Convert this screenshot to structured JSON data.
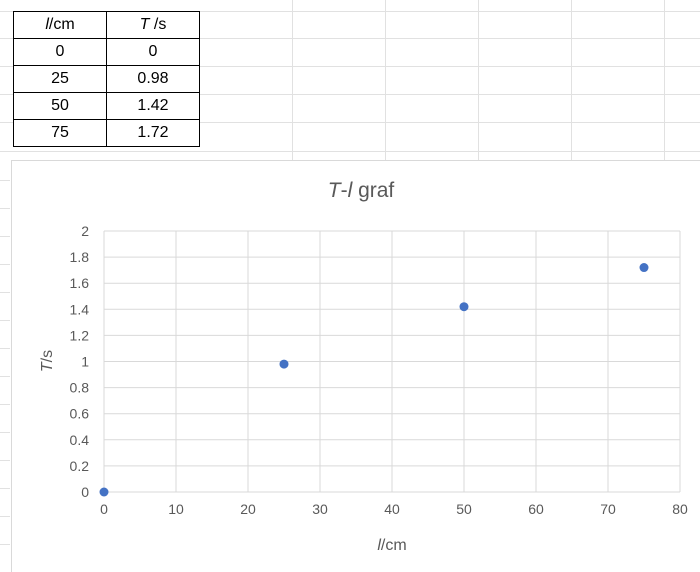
{
  "table": {
    "headers": [
      {
        "symbol": "l",
        "unit": "/cm"
      },
      {
        "symbol": "T",
        "unit": " /s"
      }
    ],
    "rows": [
      [
        "0",
        "0"
      ],
      [
        "25",
        "0.98"
      ],
      [
        "50",
        "1.42"
      ],
      [
        "75",
        "1.72"
      ]
    ]
  },
  "chart_data": {
    "type": "scatter",
    "title": "T-l graf",
    "title_parts": {
      "italic_1": "T",
      "dash": "-",
      "italic_2": "l",
      "rest": " graf"
    },
    "xlabel": "l/cm",
    "xlabel_parts": {
      "italic": "l",
      "rest": "/cm"
    },
    "ylabel": "T/s",
    "ylabel_parts": {
      "italic": "T",
      "rest": "/s"
    },
    "x": [
      0,
      25,
      50,
      75
    ],
    "y": [
      0,
      0.98,
      1.42,
      1.72
    ],
    "xlim": [
      0,
      80
    ],
    "ylim": [
      0,
      2
    ],
    "x_ticks": [
      "0",
      "10",
      "20",
      "30",
      "40",
      "50",
      "60",
      "70",
      "80"
    ],
    "y_ticks": [
      "0",
      "0.2",
      "0.4",
      "0.6",
      "0.8",
      "1",
      "1.2",
      "1.4",
      "1.6",
      "1.8",
      "2"
    ],
    "grid": true,
    "marker_color": "#4472c4"
  }
}
